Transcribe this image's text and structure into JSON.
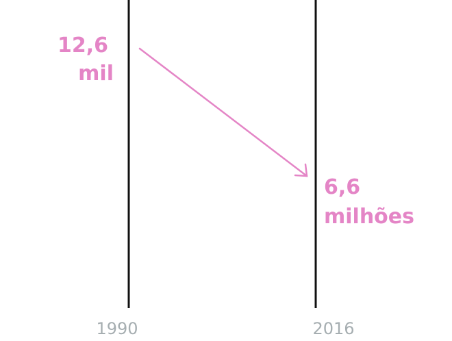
{
  "columns": [
    {
      "year": "1990",
      "value_lines": [
        "12,6",
        "mil"
      ]
    },
    {
      "year": "2016",
      "value_lines": [
        "6,6",
        "milhões"
      ]
    }
  ]
}
